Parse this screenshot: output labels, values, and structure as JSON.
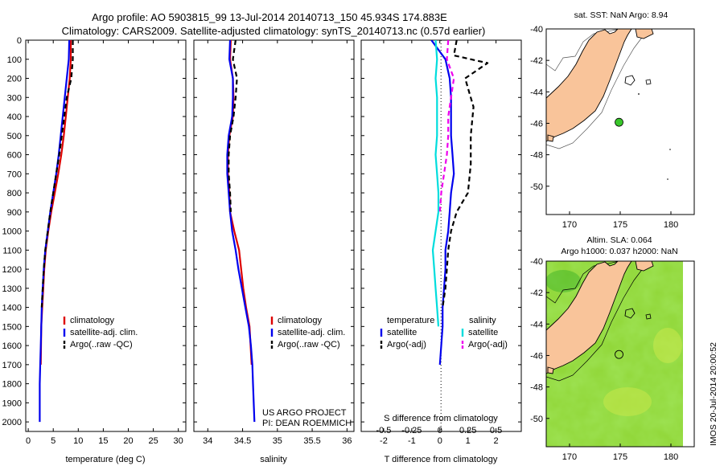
{
  "header": {
    "line1": "Argo profile: AO 5903815_99 13-Jul-2014 20140713_150 45.934S 174.883E",
    "line2": "Climatology: CARS2009. Satellite-adjusted climatology: synTS_20140713.nc (0.57d earlier)"
  },
  "project": {
    "line1": "US ARGO PROJECT",
    "line2": "PI: DEAN ROEMMICH"
  },
  "timestamp": "IMOS 20-Jul-2014 20:00:52",
  "colors": {
    "red": "#dd0000",
    "blue": "#0000ee",
    "black": "#000000",
    "cyan": "#00dddd",
    "magenta": "#ee00ee",
    "land": "#f9c49a",
    "sla_base": "#7ed321"
  },
  "chart_data": [
    {
      "type": "line",
      "id": "temperature",
      "xlabel": "temperature (deg C)",
      "xlim": [
        -0.5,
        31.5
      ],
      "ylim": [
        2050,
        0
      ],
      "xticks": [
        0,
        5,
        10,
        15,
        20,
        25,
        30
      ],
      "yticks": [
        0,
        100,
        200,
        300,
        400,
        500,
        600,
        700,
        800,
        900,
        1000,
        1100,
        1200,
        1300,
        1400,
        1500,
        1600,
        1700,
        1800,
        1900,
        2000
      ],
      "legend": [
        "climatology",
        "satellite-adj. clim.",
        "Argo(..raw -QC)"
      ],
      "series": [
        {
          "name": "climatology",
          "color": "#dd0000",
          "dash": "",
          "x": [
            8.5,
            8.5,
            8.3,
            7.9,
            7.5,
            7.1,
            6.6,
            6.0,
            5.3,
            4.6,
            4.0,
            3.5,
            3.2,
            3.0,
            2.8,
            2.6,
            2.5
          ],
          "y": [
            0,
            100,
            200,
            300,
            400,
            500,
            600,
            700,
            800,
            900,
            1000,
            1100,
            1200,
            1300,
            1400,
            1500,
            1700
          ]
        },
        {
          "name": "satellite-adj. clim.",
          "color": "#0000ee",
          "dash": "",
          "x": [
            8.2,
            8.1,
            7.7,
            7.3,
            6.9,
            6.5,
            6.1,
            5.6,
            5.0,
            4.4,
            3.9,
            3.4,
            3.1,
            2.9,
            2.7,
            2.6,
            2.5,
            2.4,
            2.3,
            2.3
          ],
          "y": [
            0,
            100,
            200,
            300,
            400,
            500,
            600,
            700,
            800,
            900,
            1000,
            1100,
            1200,
            1300,
            1400,
            1500,
            1600,
            1700,
            1800,
            2000
          ]
        },
        {
          "name": "Argo(..raw -QC)",
          "color": "#000000",
          "dash": "6,4",
          "x": [
            8.9,
            8.9,
            8.6,
            7.7,
            7.2,
            6.7,
            6.2,
            5.6,
            5.0,
            4.4,
            3.9,
            3.4,
            3.1,
            2.9,
            2.7
          ],
          "y": [
            0,
            100,
            200,
            300,
            400,
            500,
            600,
            700,
            800,
            900,
            1000,
            1100,
            1200,
            1300,
            1400
          ]
        }
      ]
    },
    {
      "type": "line",
      "id": "salinity",
      "xlabel": "salinity",
      "xlim": [
        33.8,
        36.1
      ],
      "ylim": [
        2050,
        0
      ],
      "xticks": [
        34,
        34.5,
        35,
        35.5,
        36
      ],
      "legend": [
        "climatology",
        "satellite-adj. clim.",
        "Argo(..raw -QC)"
      ],
      "series": [
        {
          "name": "climatology",
          "color": "#dd0000",
          "dash": "",
          "x": [
            34.33,
            34.32,
            34.36,
            34.37,
            34.36,
            34.31,
            34.29,
            34.29,
            34.31,
            34.32,
            34.38,
            34.45,
            34.48,
            34.51,
            34.55,
            34.6,
            34.63
          ],
          "y": [
            0,
            100,
            200,
            300,
            400,
            500,
            600,
            700,
            800,
            900,
            1000,
            1100,
            1200,
            1300,
            1400,
            1500,
            1700
          ]
        },
        {
          "name": "satellite-adj. clim.",
          "color": "#0000ee",
          "dash": "",
          "x": [
            34.32,
            34.31,
            34.36,
            34.36,
            34.35,
            34.3,
            34.28,
            34.28,
            34.3,
            34.32,
            34.35,
            34.4,
            34.44,
            34.49,
            34.54,
            34.59,
            34.62,
            34.64,
            34.65,
            34.67
          ],
          "y": [
            0,
            100,
            200,
            300,
            400,
            500,
            600,
            700,
            800,
            900,
            1000,
            1100,
            1200,
            1300,
            1400,
            1500,
            1600,
            1700,
            1800,
            2000
          ]
        },
        {
          "name": "Argo(..raw -QC)",
          "color": "#000000",
          "dash": "6,4",
          "x": [
            34.4,
            34.36,
            34.42,
            34.4,
            34.37,
            34.32,
            34.3,
            34.3,
            34.32,
            34.33
          ],
          "y": [
            0,
            100,
            200,
            300,
            400,
            500,
            600,
            700,
            800,
            900
          ]
        }
      ]
    },
    {
      "type": "line",
      "id": "difference",
      "xlabel": "T difference from climatology",
      "xlabel2": "S difference from climatology",
      "xlim": [
        -2.8,
        2.9
      ],
      "ylim": [
        2050,
        0
      ],
      "xticks": [
        -2,
        -1,
        0,
        1,
        2
      ],
      "s_ticks": [
        "-0.5",
        "-0.25",
        "0",
        "0.25",
        "0.5"
      ],
      "legend_header": [
        "temperature",
        "salinity"
      ],
      "legend": [
        "satellite",
        "Argo(-adj)",
        "satellite",
        "Argo(-adj)"
      ],
      "series": [
        {
          "name": "temperature satellite",
          "color": "#0000ee",
          "dash": "",
          "x": [
            -0.3,
            0.2,
            0.35,
            0.4,
            0.4,
            0.4,
            0.45,
            0.5,
            0.4,
            0.35,
            0.3,
            0.2,
            0.2,
            0.15,
            0.1,
            0.1,
            0.05,
            0.0
          ],
          "y": [
            0,
            100,
            200,
            300,
            400,
            500,
            600,
            700,
            800,
            900,
            1000,
            1100,
            1200,
            1300,
            1400,
            1500,
            1600,
            1700
          ]
        },
        {
          "name": "salinity satellite",
          "color": "#00dddd",
          "dash": "",
          "x": [
            -0.15,
            -0.1,
            -0.15,
            -0.1,
            -0.1,
            -0.1,
            -0.15,
            -0.1,
            -0.05,
            -0.05,
            -0.15,
            -0.25,
            -0.2,
            -0.15,
            -0.1,
            -0.05
          ],
          "y": [
            0,
            100,
            200,
            300,
            400,
            500,
            600,
            700,
            800,
            900,
            1000,
            1100,
            1200,
            1300,
            1400,
            1500
          ]
        },
        {
          "name": "temperature Argo(-adj)",
          "color": "#000000",
          "dash": "6,4",
          "x": [
            0.6,
            0.5,
            1.7,
            0.9,
            1.2,
            1.1,
            1.1,
            1.0,
            0.6,
            0.4,
            0.3,
            0.25,
            0.2,
            0.1
          ],
          "y": [
            0,
            80,
            120,
            200,
            350,
            500,
            650,
            800,
            900,
            1000,
            1100,
            1200,
            1300,
            1400
          ]
        },
        {
          "name": "salinity Argo(-adj)",
          "color": "#ee00ee",
          "dash": "6,4",
          "x": [
            0.3,
            0.25,
            0.5,
            0.4,
            0.3,
            0.3,
            0.25,
            0.15,
            0.05,
            0.0
          ],
          "y": [
            0,
            100,
            200,
            300,
            400,
            500,
            600,
            700,
            800,
            900
          ]
        }
      ]
    },
    {
      "type": "map",
      "id": "sst-map",
      "title": "sat. SST: NaN Argo: 8.94",
      "xlim": [
        167.7,
        182.3
      ],
      "ylim": [
        -51.8,
        -40
      ],
      "xticks": [
        170,
        175,
        180
      ],
      "yticks": [
        -40,
        -42,
        -44,
        -46,
        -48,
        -50
      ],
      "argo_position": [
        174.883,
        -45.934
      ]
    },
    {
      "type": "heatmap",
      "id": "sla-map",
      "title1": "Altim. SLA: 0.064",
      "title2": "Argo h1000: 0.037 h2000: NaN",
      "xlim": [
        167.7,
        182.3
      ],
      "ylim": [
        -51.8,
        -40
      ],
      "xticks": [
        170,
        175,
        180
      ],
      "yticks": [
        -40,
        -42,
        -44,
        -46,
        -48,
        -50
      ],
      "argo_position": [
        174.883,
        -45.934
      ]
    }
  ]
}
